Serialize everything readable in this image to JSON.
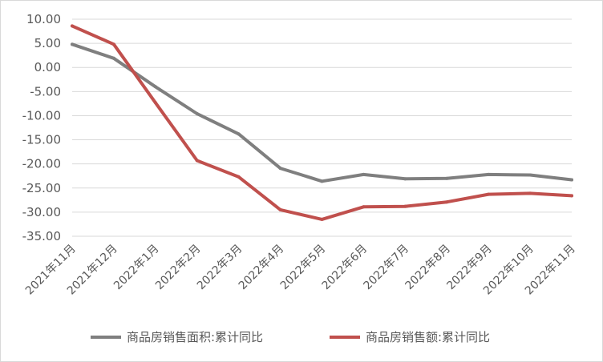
{
  "chart_data": {
    "type": "line",
    "title": "",
    "xlabel": "",
    "ylabel": "",
    "categories": [
      "2021年11月",
      "2021年12月",
      "2022年1月",
      "2022年2月",
      "2022年3月",
      "2022年4月",
      "2022年5月",
      "2022年6月",
      "2022年7月",
      "2022年8月",
      "2022年9月",
      "2022年10月",
      "2022年11月"
    ],
    "ylim": [
      -35,
      10
    ],
    "yticks": [
      10,
      5,
      0,
      -5,
      -10,
      -15,
      -20,
      -25,
      -30,
      -35
    ],
    "ytick_labels": [
      "10.00",
      "5.00",
      "0.00",
      "-5.00",
      "-10.00",
      "-15.00",
      "-20.00",
      "-25.00",
      "-30.00",
      "-35.00"
    ],
    "grid": true,
    "legend_position": "bottom",
    "series": [
      {
        "name": "商品房销售面积:累计同比",
        "color": "#7f7f7f",
        "values": [
          4.8,
          1.9,
          -4.0,
          -9.6,
          -13.8,
          -20.9,
          -23.6,
          -22.2,
          -23.1,
          -23.0,
          -22.2,
          -22.3,
          -23.3
        ]
      },
      {
        "name": "商品房销售额:累计同比",
        "color": "#c0504d",
        "values": [
          8.6,
          4.8,
          -7.3,
          -19.3,
          -22.7,
          -29.5,
          -31.5,
          -28.9,
          -28.8,
          -27.9,
          -26.3,
          -26.1,
          -26.6
        ]
      }
    ]
  }
}
